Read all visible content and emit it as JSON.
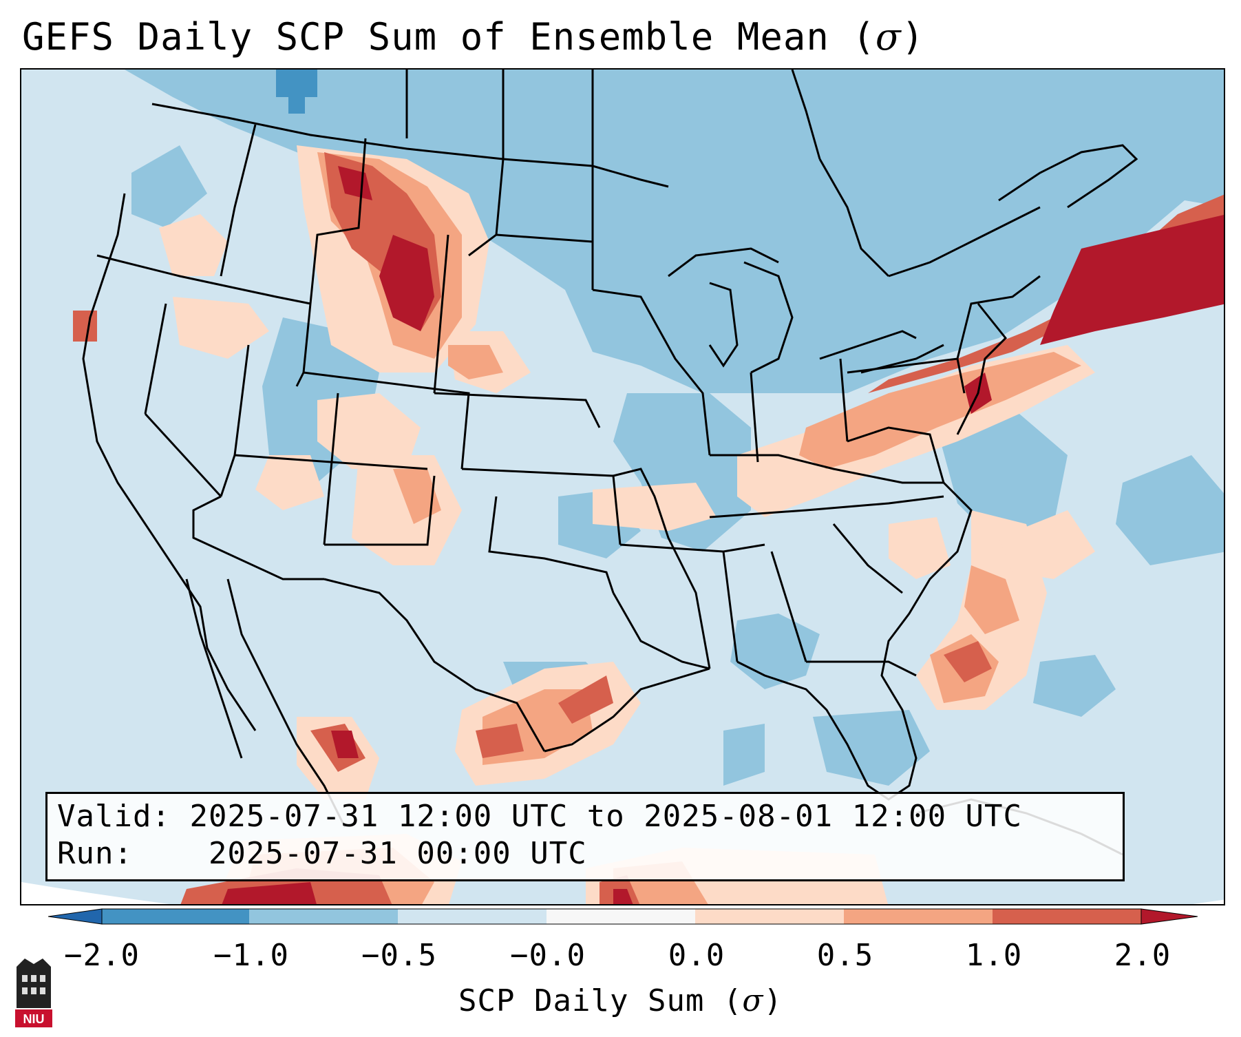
{
  "title": {
    "prefix": "GEFS Daily SCP Sum of Ensemble Mean (",
    "sigma": "σ",
    "suffix": ")"
  },
  "info": {
    "valid_label": "Valid:",
    "valid_text": "2025-07-31 12:00 UTC to 2025-08-01 12:00 UTC",
    "run_label": "Run:",
    "run_text": "2025-07-31 00:00 UTC"
  },
  "colorbar": {
    "ticks": [
      "−2.0",
      "−1.0",
      "−0.5",
      "−0.0",
      "0.0",
      "0.5",
      "1.0",
      "2.0"
    ],
    "label_prefix": "SCP Daily Sum (",
    "label_sigma": "σ",
    "label_suffix": ")",
    "colors": {
      "under": "#2166ac",
      "b1": "#4393c3",
      "b2": "#92c5de",
      "b3": "#d1e5f0",
      "b4": "#f7f7f7",
      "r1": "#fddbc7",
      "r2": "#f4a582",
      "r3": "#d6604d",
      "over": "#b2182b"
    }
  },
  "logo": {
    "text": "NIU"
  }
}
